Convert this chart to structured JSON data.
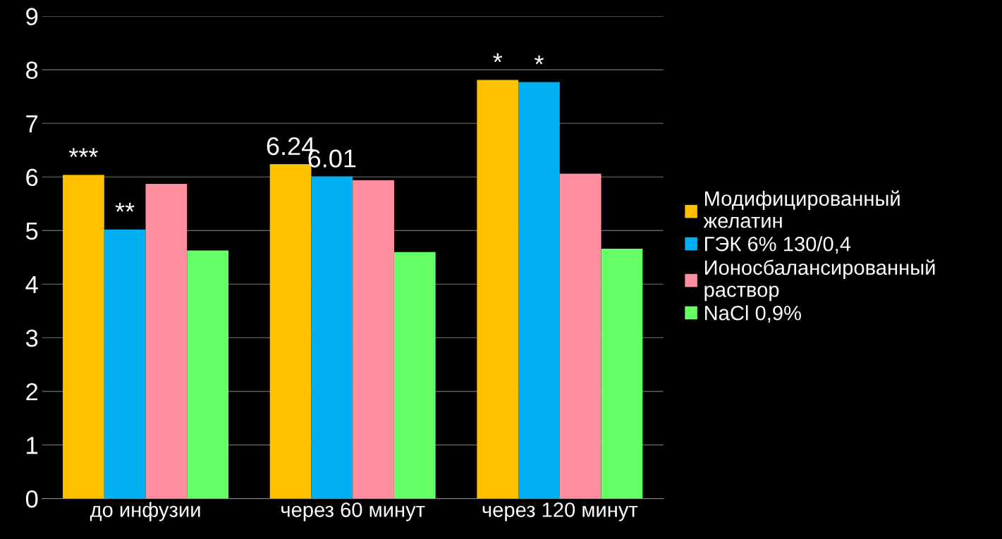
{
  "chart_data": {
    "type": "bar",
    "categories": [
      "до инфузии",
      "через 60 минут",
      "через 120 минут"
    ],
    "series": [
      {
        "name": "Модифицированный\nжелатин",
        "color": "#ffc000",
        "values": [
          6.04,
          6.24,
          7.81
        ],
        "value_labels": [
          "***",
          "6.24",
          "*"
        ]
      },
      {
        "name": "ГЭК 6% 130/0,4",
        "color": "#00b0f0",
        "values": [
          5.02,
          6.01,
          7.77
        ],
        "value_labels": [
          "**",
          "6.01",
          "*"
        ]
      },
      {
        "name": "Ионосбалансированный\nраствор",
        "color": "#ff8f9f",
        "values": [
          5.87,
          5.94,
          6.06
        ]
      },
      {
        "name": "NaCl 0,9%",
        "color": "#66ff66",
        "values": [
          4.63,
          4.6,
          4.66
        ]
      }
    ],
    "ylim": [
      0,
      9
    ],
    "yticks": [
      0,
      1,
      2,
      3,
      4,
      5,
      6,
      7,
      8,
      9
    ],
    "grid": "y",
    "legend": "right"
  }
}
